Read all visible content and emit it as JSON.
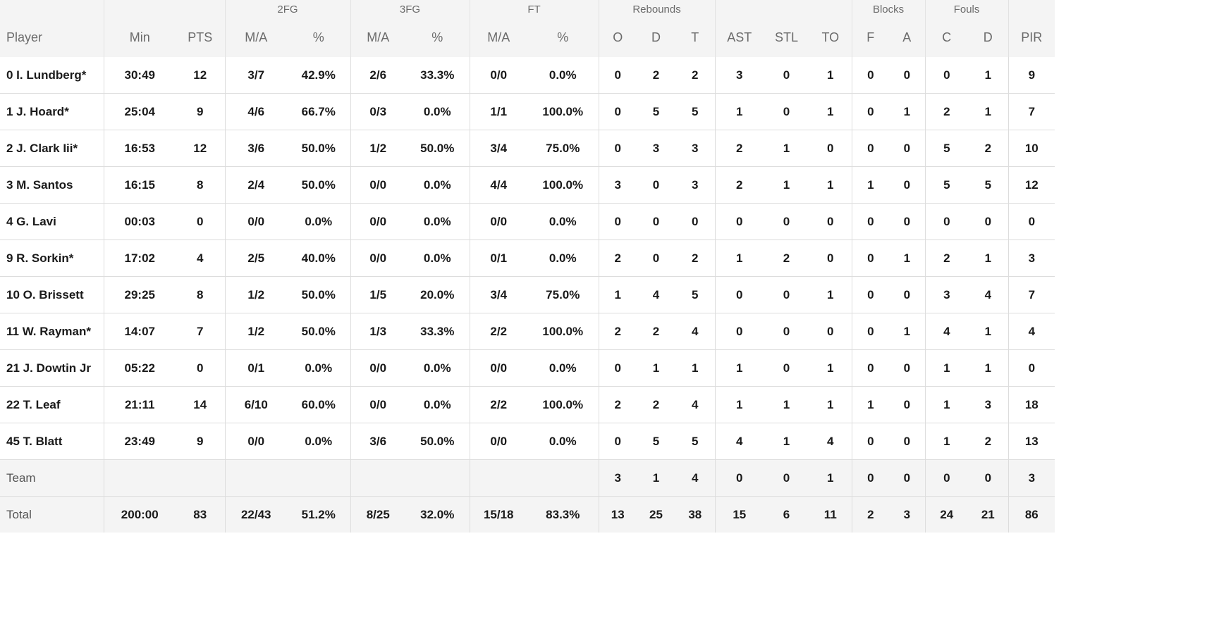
{
  "groups": [
    "2FG",
    "3FG",
    "FT",
    "Rebounds",
    "Blocks",
    "Fouls"
  ],
  "columns": [
    "Player",
    "Min",
    "PTS",
    "M/A",
    "%",
    "M/A",
    "%",
    "M/A",
    "%",
    "O",
    "D",
    "T",
    "AST",
    "STL",
    "TO",
    "F",
    "A",
    "C",
    "D",
    "PIR"
  ],
  "rows": [
    [
      "0 I. Lundberg*",
      "30:49",
      "12",
      "3/7",
      "42.9%",
      "2/6",
      "33.3%",
      "0/0",
      "0.0%",
      "0",
      "2",
      "2",
      "3",
      "0",
      "1",
      "0",
      "0",
      "0",
      "1",
      "9"
    ],
    [
      "1 J. Hoard*",
      "25:04",
      "9",
      "4/6",
      "66.7%",
      "0/3",
      "0.0%",
      "1/1",
      "100.0%",
      "0",
      "5",
      "5",
      "1",
      "0",
      "1",
      "0",
      "1",
      "2",
      "1",
      "7"
    ],
    [
      "2 J. Clark Iii*",
      "16:53",
      "12",
      "3/6",
      "50.0%",
      "1/2",
      "50.0%",
      "3/4",
      "75.0%",
      "0",
      "3",
      "3",
      "2",
      "1",
      "0",
      "0",
      "0",
      "5",
      "2",
      "10"
    ],
    [
      "3 M. Santos",
      "16:15",
      "8",
      "2/4",
      "50.0%",
      "0/0",
      "0.0%",
      "4/4",
      "100.0%",
      "3",
      "0",
      "3",
      "2",
      "1",
      "1",
      "1",
      "0",
      "5",
      "5",
      "12"
    ],
    [
      "4 G. Lavi",
      "00:03",
      "0",
      "0/0",
      "0.0%",
      "0/0",
      "0.0%",
      "0/0",
      "0.0%",
      "0",
      "0",
      "0",
      "0",
      "0",
      "0",
      "0",
      "0",
      "0",
      "0",
      "0"
    ],
    [
      "9 R. Sorkin*",
      "17:02",
      "4",
      "2/5",
      "40.0%",
      "0/0",
      "0.0%",
      "0/1",
      "0.0%",
      "2",
      "0",
      "2",
      "1",
      "2",
      "0",
      "0",
      "1",
      "2",
      "1",
      "3"
    ],
    [
      "10 O. Brissett",
      "29:25",
      "8",
      "1/2",
      "50.0%",
      "1/5",
      "20.0%",
      "3/4",
      "75.0%",
      "1",
      "4",
      "5",
      "0",
      "0",
      "1",
      "0",
      "0",
      "3",
      "4",
      "7"
    ],
    [
      "11 W. Rayman*",
      "14:07",
      "7",
      "1/2",
      "50.0%",
      "1/3",
      "33.3%",
      "2/2",
      "100.0%",
      "2",
      "2",
      "4",
      "0",
      "0",
      "0",
      "0",
      "1",
      "4",
      "1",
      "4"
    ],
    [
      "21 J. Dowtin Jr",
      "05:22",
      "0",
      "0/1",
      "0.0%",
      "0/0",
      "0.0%",
      "0/0",
      "0.0%",
      "0",
      "1",
      "1",
      "1",
      "0",
      "1",
      "0",
      "0",
      "1",
      "1",
      "0"
    ],
    [
      "22 T. Leaf",
      "21:11",
      "14",
      "6/10",
      "60.0%",
      "0/0",
      "0.0%",
      "2/2",
      "100.0%",
      "2",
      "2",
      "4",
      "1",
      "1",
      "1",
      "1",
      "0",
      "1",
      "3",
      "18"
    ],
    [
      "45 T. Blatt",
      "23:49",
      "9",
      "0/0",
      "0.0%",
      "3/6",
      "50.0%",
      "0/0",
      "0.0%",
      "0",
      "5",
      "5",
      "4",
      "1",
      "4",
      "0",
      "0",
      "1",
      "2",
      "13"
    ]
  ],
  "team": [
    "Team",
    "",
    "",
    "",
    "",
    "",
    "",
    "",
    "",
    "3",
    "1",
    "4",
    "0",
    "0",
    "1",
    "0",
    "0",
    "0",
    "0",
    "3"
  ],
  "total": [
    "Total",
    "200:00",
    "83",
    "22/43",
    "51.2%",
    "8/25",
    "32.0%",
    "15/18",
    "83.3%",
    "13",
    "25",
    "38",
    "15",
    "6",
    "11",
    "2",
    "3",
    "24",
    "21",
    "86"
  ]
}
